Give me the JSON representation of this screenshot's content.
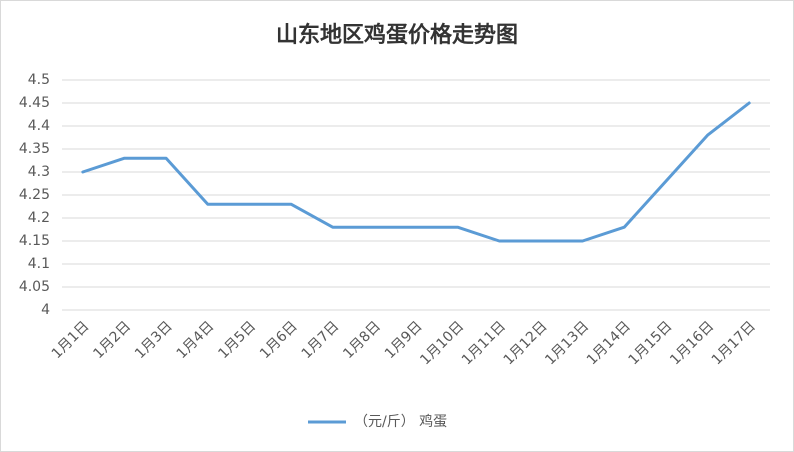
{
  "chart_data": {
    "type": "line",
    "title": "山东地区鸡蛋价格走势图",
    "categories": [
      "1月1日",
      "1月2日",
      "1月3日",
      "1月4日",
      "1月5日",
      "1月6日",
      "1月7日",
      "1月8日",
      "1月9日",
      "1月10日",
      "1月11日",
      "1月12日",
      "1月13日",
      "1月14日",
      "1月15日",
      "1月16日",
      "1月17日"
    ],
    "series": [
      {
        "name": "（元/斤） 鸡蛋",
        "color": "#5b9bd5",
        "values": [
          4.3,
          4.33,
          4.33,
          4.23,
          4.23,
          4.23,
          4.18,
          4.18,
          4.18,
          4.18,
          4.15,
          4.15,
          4.15,
          4.18,
          4.28,
          4.38,
          4.45
        ]
      }
    ],
    "ylim": [
      4,
      4.5
    ],
    "yticks": [
      4,
      4.05,
      4.1,
      4.15,
      4.2,
      4.25,
      4.3,
      4.35,
      4.4,
      4.45,
      4.5
    ],
    "grid": true,
    "legend": "bottom"
  }
}
